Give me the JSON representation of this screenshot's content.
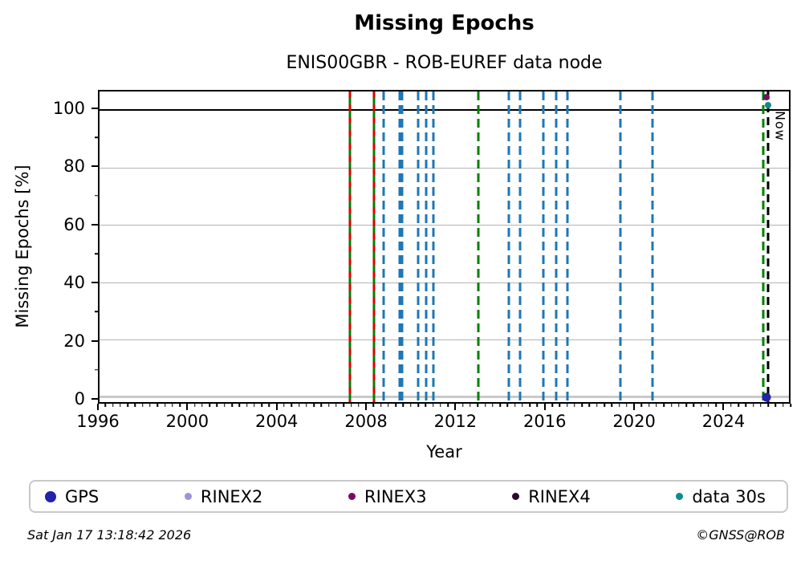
{
  "header": {
    "title": "Missing Epochs",
    "subtitle": "ENIS00GBR - ROB-EUREF data node"
  },
  "footer": {
    "timestamp": "Sat Jan 17 13:18:42 2026",
    "credit": "©GNSS@ROB"
  },
  "chart_data": {
    "type": "scatter",
    "title": "Missing Epochs",
    "subtitle": "ENIS00GBR - ROB-EUREF data node",
    "xlabel": "Year",
    "ylabel": "Missing Epochs [%]",
    "xlim": [
      1996,
      2027
    ],
    "ylim": [
      -1.7,
      106.4
    ],
    "grid": true,
    "x_major_ticks": [
      1996,
      2000,
      2004,
      2008,
      2012,
      2016,
      2020,
      2024
    ],
    "x_minor_interval_years": 0.3333,
    "y_major_ticks": [
      0,
      20,
      40,
      60,
      80,
      100
    ],
    "y_minor_ticks": [
      10,
      30,
      50,
      70,
      90
    ],
    "grid_y_values": [
      20,
      40,
      60,
      80
    ],
    "colors": {
      "blue": "#1f77b4",
      "green": "#008000",
      "red": "#dd0000",
      "now": "#000000",
      "grid": "#b4b4b4",
      "zero_line": "#c9c9c9",
      "hundred_line": "#000000"
    },
    "hlines": [
      {
        "y": 100,
        "color": "#000000",
        "width": 2
      },
      {
        "y": 0,
        "color": "#c9c9c9",
        "width": 3
      }
    ],
    "now_label": "Now",
    "vlines": [
      {
        "year": 2007.25,
        "style": "green-red"
      },
      {
        "year": 2008.33,
        "style": "green-red"
      },
      {
        "year": 2008.78,
        "style": "blue"
      },
      {
        "year": 2009.5,
        "style": "blue"
      },
      {
        "year": 2009.62,
        "style": "blue"
      },
      {
        "year": 2010.33,
        "style": "blue"
      },
      {
        "year": 2010.67,
        "style": "blue"
      },
      {
        "year": 2011.03,
        "style": "blue"
      },
      {
        "year": 2013.03,
        "style": "green"
      },
      {
        "year": 2014.42,
        "style": "blue"
      },
      {
        "year": 2014.92,
        "style": "blue"
      },
      {
        "year": 2015.95,
        "style": "blue"
      },
      {
        "year": 2016.52,
        "style": "blue"
      },
      {
        "year": 2017.03,
        "style": "blue"
      },
      {
        "year": 2019.42,
        "style": "blue"
      },
      {
        "year": 2020.85,
        "style": "blue"
      },
      {
        "year": 2025.85,
        "style": "green"
      },
      {
        "year": 2026.05,
        "style": "now",
        "label": "Now"
      }
    ],
    "markers": [
      {
        "x": 2026.0,
        "y": 104.4,
        "series": "RINEX3",
        "color": "#750d68",
        "size": 8
      },
      {
        "x": 2026.05,
        "y": 101.7,
        "series": "data 30s",
        "color": "#0f8b8b",
        "size": 8
      },
      {
        "x": 2026.0,
        "y": 0.0,
        "series": "GPS",
        "color": "#2222aa",
        "size": 11
      }
    ],
    "legend": [
      {
        "label": "GPS",
        "color": "#2222aa",
        "size": 14
      },
      {
        "label": "RINEX2",
        "color": "#9b95d2",
        "size": 9
      },
      {
        "label": "RINEX3",
        "color": "#750d68",
        "size": 9
      },
      {
        "label": "RINEX4",
        "color": "#2e0b2e",
        "size": 9
      },
      {
        "label": "data 30s",
        "color": "#0f8b8b",
        "size": 9
      }
    ]
  }
}
